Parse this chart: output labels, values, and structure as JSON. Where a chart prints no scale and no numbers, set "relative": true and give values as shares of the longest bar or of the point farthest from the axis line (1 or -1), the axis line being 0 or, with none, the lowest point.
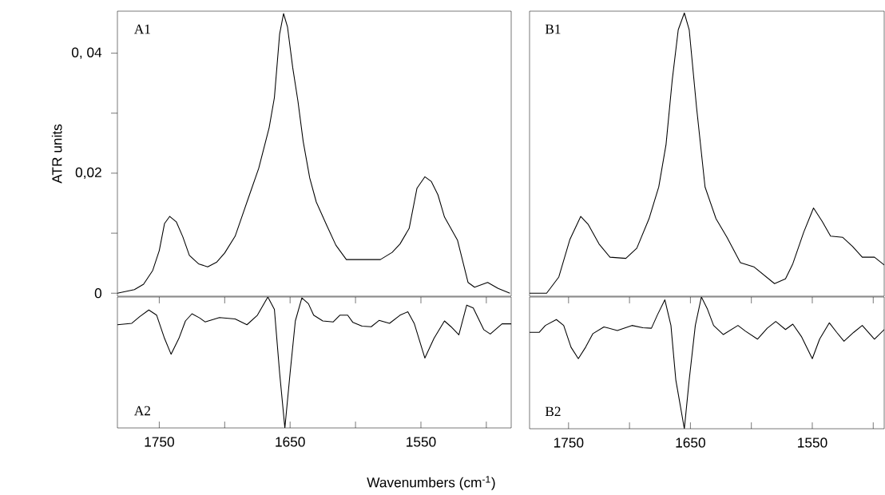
{
  "chart_data": [
    {
      "type": "line",
      "title": "A1",
      "ylabel": "ATR units",
      "color": "#000000",
      "tick_labels": "y",
      "xlim": [
        1782,
        1481
      ],
      "ylim": [
        -0.0005,
        0.047
      ],
      "yticks": [
        0,
        {
          "value": 0.01,
          "label": null
        },
        {
          "value": 0.02,
          "label": "0,02"
        },
        {
          "value": 0.03,
          "label": null
        },
        {
          "value": 0.04,
          "label": "0, 04"
        }
      ],
      "x": [
        1782,
        1769,
        1762,
        1755,
        1750,
        1746,
        1742,
        1737,
        1732,
        1727,
        1720,
        1713,
        1706,
        1700,
        1692,
        1682,
        1674,
        1666,
        1662,
        1658,
        1655,
        1652,
        1648,
        1644,
        1640,
        1635,
        1630,
        1622,
        1615,
        1607,
        1581,
        1572,
        1566,
        1559,
        1553,
        1547,
        1542,
        1537,
        1532,
        1522,
        1514,
        1509,
        1499,
        1491,
        1482
      ],
      "values": [
        0,
        0.0006,
        0.0015,
        0.0038,
        0.0071,
        0.0116,
        0.0128,
        0.0119,
        0.0094,
        0.0063,
        0.0049,
        0.0044,
        0.0052,
        0.0067,
        0.0095,
        0.0158,
        0.0208,
        0.0276,
        0.0326,
        0.0432,
        0.0466,
        0.0444,
        0.0376,
        0.032,
        0.0253,
        0.0192,
        0.0152,
        0.0113,
        0.008,
        0.0056,
        0.0056,
        0.0068,
        0.0082,
        0.0108,
        0.0175,
        0.0194,
        0.0186,
        0.0164,
        0.0127,
        0.0088,
        0.0018,
        0.001,
        0.0018,
        0.0008,
        0
      ]
    },
    {
      "type": "line",
      "title": "B1",
      "color": "#000000",
      "tick_labels": false,
      "xlim": [
        1782,
        1491
      ],
      "ylim": [
        -0.0005,
        0.047
      ],
      "x": [
        1782,
        1768,
        1758,
        1749,
        1740,
        1734,
        1725,
        1716,
        1703,
        1694,
        1684,
        1676,
        1670,
        1665,
        1660,
        1655,
        1651,
        1645,
        1638,
        1629,
        1620,
        1609,
        1598,
        1581,
        1572,
        1566,
        1557,
        1549,
        1542,
        1535,
        1525,
        1517,
        1509,
        1499,
        1491
      ],
      "values": [
        0,
        0,
        0.0027,
        0.0089,
        0.0128,
        0.0115,
        0.0082,
        0.006,
        0.0058,
        0.0075,
        0.0124,
        0.0177,
        0.0248,
        0.0354,
        0.0439,
        0.0467,
        0.0439,
        0.031,
        0.0177,
        0.0124,
        0.0093,
        0.0051,
        0.0044,
        0.0016,
        0.0024,
        0.0049,
        0.0102,
        0.0142,
        0.012,
        0.0095,
        0.0093,
        0.0078,
        0.006,
        0.006,
        0.0047
      ]
    },
    {
      "type": "line",
      "title": "A2",
      "xlabel": "Wavenumbers (cm$^{-1}$)",
      "color": "#000000",
      "tick_labels": "x",
      "relative": true,
      "xlim": [
        1782,
        1481
      ],
      "xticks": [
        1750,
        {
          "value": 1700,
          "label": null
        },
        1650,
        {
          "value": 1600,
          "label": null
        },
        1550,
        {
          "value": 1500,
          "label": null
        }
      ],
      "x": [
        1782,
        1771,
        1765,
        1758,
        1752,
        1746,
        1741,
        1735,
        1730,
        1725,
        1719,
        1715,
        1704,
        1692,
        1683,
        1675,
        1667,
        1662,
        1658,
        1654,
        1650,
        1646,
        1641,
        1636,
        1632,
        1625,
        1617,
        1612,
        1606,
        1602,
        1595,
        1588,
        1582,
        1574,
        1566,
        1560,
        1555,
        1547,
        1540,
        1532,
        1527,
        1521,
        1515,
        1510,
        1502,
        1497,
        1488,
        1481
      ],
      "values": [
        0.788,
        0.799,
        0.85,
        0.901,
        0.861,
        0.684,
        0.563,
        0.684,
        0.817,
        0.872,
        0.839,
        0.81,
        0.843,
        0.832,
        0.788,
        0.861,
        1,
        0.905,
        0.419,
        0,
        0.419,
        0.817,
        0.993,
        0.949,
        0.861,
        0.817,
        0.81,
        0.861,
        0.861,
        0.806,
        0.777,
        0.773,
        0.821,
        0.799,
        0.861,
        0.887,
        0.795,
        0.534,
        0.684,
        0.817,
        0.773,
        0.711,
        0.938,
        0.916,
        0.751,
        0.717,
        0.795,
        0.795
      ]
    },
    {
      "type": "line",
      "title": "B2",
      "color": "#000000",
      "tick_labels": "x",
      "relative": true,
      "xlim": [
        1782,
        1491
      ],
      "xticks": [
        1750,
        {
          "value": 1700,
          "label": null
        },
        1650,
        {
          "value": 1600,
          "label": null
        },
        1550,
        {
          "value": 1500,
          "label": null
        }
      ],
      "x": [
        1782,
        1774,
        1769,
        1760,
        1754,
        1748,
        1742,
        1736,
        1730,
        1721,
        1710,
        1698,
        1689,
        1682,
        1677,
        1671,
        1666,
        1662,
        1655,
        1651,
        1646,
        1641,
        1636,
        1631,
        1623,
        1611,
        1605,
        1595,
        1587,
        1580,
        1572,
        1566,
        1559,
        1550,
        1544,
        1536,
        1530,
        1524,
        1516,
        1509,
        1499,
        1491
      ],
      "values": [
        0.732,
        0.732,
        0.784,
        0.829,
        0.784,
        0.619,
        0.532,
        0.619,
        0.722,
        0.773,
        0.746,
        0.784,
        0.767,
        0.763,
        0.866,
        0.979,
        0.784,
        0.371,
        0,
        0.371,
        0.784,
        1,
        0.907,
        0.784,
        0.715,
        0.784,
        0.742,
        0.68,
        0.763,
        0.814,
        0.753,
        0.794,
        0.701,
        0.532,
        0.68,
        0.804,
        0.732,
        0.664,
        0.732,
        0.784,
        0.68,
        0.753
      ]
    }
  ]
}
